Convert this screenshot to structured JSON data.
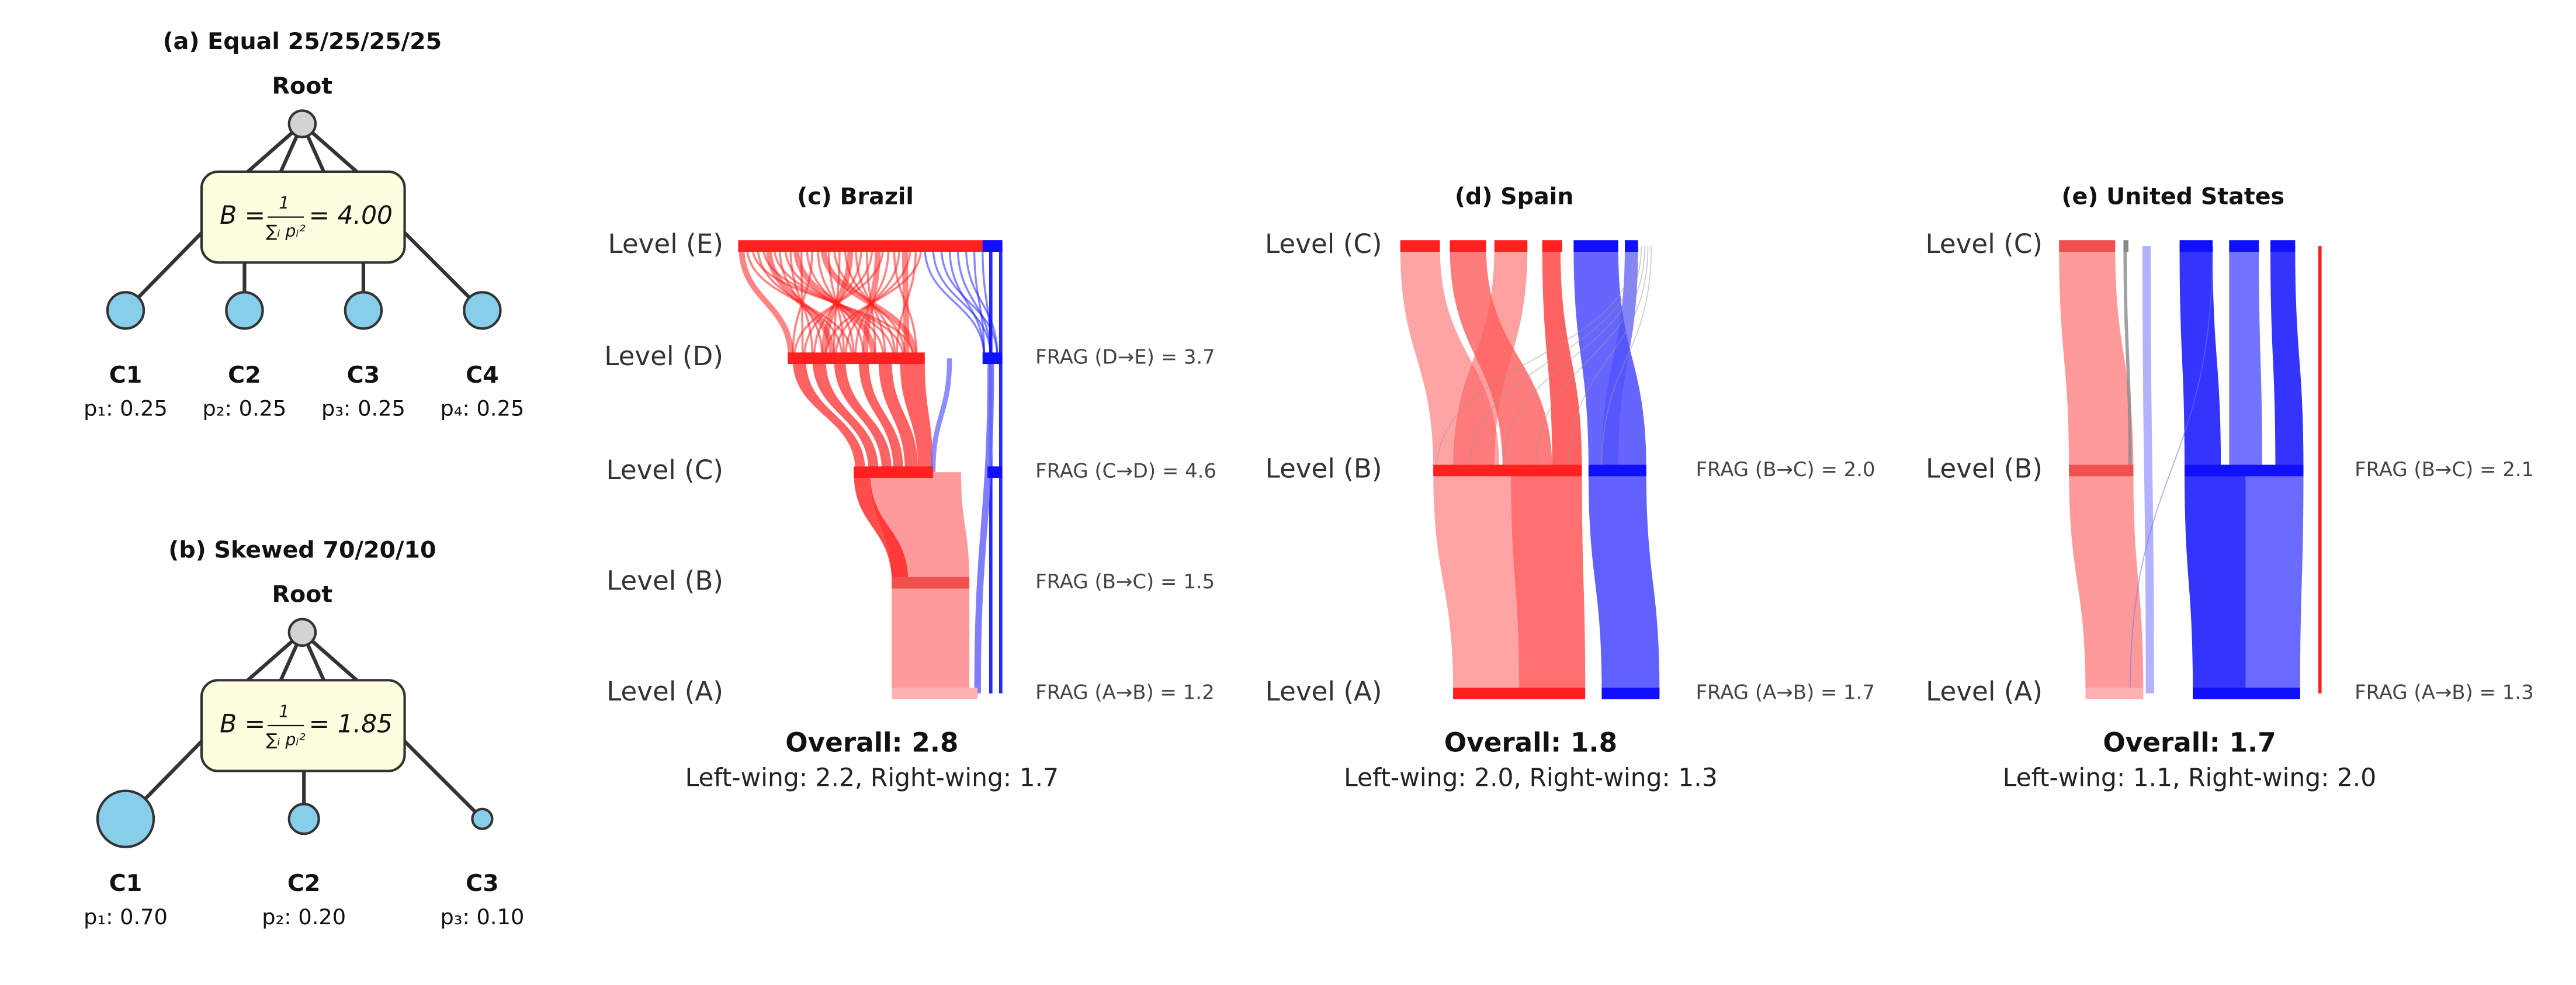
{
  "panels_tree": [
    {
      "title": "(a) Equal 25/25/25/25",
      "root": "Root",
      "formula": {
        "lhs": "B =",
        "numerator": "1",
        "denominator": "∑ᵢ pᵢ²",
        "rhs": "= 4.00"
      },
      "children": [
        {
          "label": "C1",
          "prob": "p₁: 0.25"
        },
        {
          "label": "C2",
          "prob": "p₂: 0.25"
        },
        {
          "label": "C3",
          "prob": "p₃: 0.25"
        },
        {
          "label": "C4",
          "prob": "p₄: 0.25"
        }
      ]
    },
    {
      "title": "(b) Skewed 70/20/10",
      "root": "Root",
      "formula": {
        "lhs": "B =",
        "numerator": "1",
        "denominator": "∑ᵢ pᵢ²",
        "rhs": "= 1.85"
      },
      "children": [
        {
          "label": "C1",
          "prob": "p₁: 0.70"
        },
        {
          "label": "C2",
          "prob": "p₂: 0.20"
        },
        {
          "label": "C3",
          "prob": "p₃: 0.10"
        }
      ]
    }
  ],
  "panels_flow": [
    {
      "title": "(c) Brazil",
      "levels": [
        "Level (E)",
        "Level (D)",
        "Level (C)",
        "Level (B)",
        "Level (A)"
      ],
      "frag": [
        "FRAG (D→E) = 3.7",
        "FRAG (C→D) = 4.6",
        "FRAG (B→C) = 1.5",
        "FRAG (A→B) = 1.2"
      ],
      "overall": "Overall: 2.8",
      "detail": "Left-wing: 2.2, Right-wing: 1.7"
    },
    {
      "title": "(d) Spain",
      "levels": [
        "Level (C)",
        "Level (B)",
        "Level (A)"
      ],
      "frag": [
        "FRAG (B→C) = 2.0",
        "FRAG (A→B) = 1.7"
      ],
      "overall": "Overall: 1.8",
      "detail": "Left-wing: 2.0, Right-wing: 1.3"
    },
    {
      "title": "(e) United States",
      "levels": [
        "Level (C)",
        "Level (B)",
        "Level (A)"
      ],
      "frag": [
        "FRAG (B→C) = 2.1",
        "FRAG (A→B) = 1.3"
      ],
      "overall": "Overall: 1.7",
      "detail": "Left-wing: 1.1, Right-wing: 2.0"
    }
  ]
}
